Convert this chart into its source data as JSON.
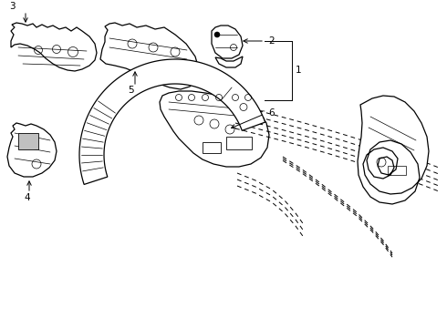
{
  "background_color": "#ffffff",
  "line_color": "#000000",
  "figsize": [
    4.9,
    3.6
  ],
  "dpi": 100,
  "label_fontsize": 7.5
}
